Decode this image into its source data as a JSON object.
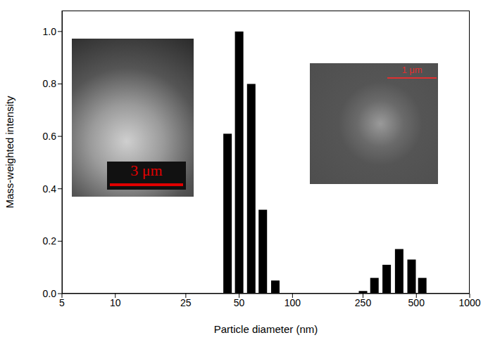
{
  "chart_data": {
    "type": "bar",
    "x": [
      43,
      50,
      58.5,
      68,
      80,
      250,
      290,
      340,
      400,
      470,
      540
    ],
    "values": [
      0.61,
      1.0,
      0.8,
      0.32,
      0.05,
      0.01,
      0.06,
      0.11,
      0.17,
      0.13,
      0.06
    ],
    "color": "#000000",
    "xlabel": "Particle diameter (nm)",
    "ylabel": "Mass-weighted intensity",
    "log": "x",
    "xlim": [
      5,
      1000
    ],
    "xticks": [
      5,
      10,
      25,
      50,
      100,
      250,
      500,
      1000
    ],
    "ylim": [
      0,
      1.08
    ],
    "yticks": [
      {
        "value": 0,
        "label": "0.0"
      },
      {
        "value": 0.2,
        "label": "0.2"
      },
      {
        "value": 0.4,
        "label": "0.4"
      },
      {
        "value": 0.6,
        "label": "0.6"
      },
      {
        "value": 0.8,
        "label": "0.8"
      },
      {
        "value": 1.0,
        "label": "1.0"
      }
    ],
    "grid": false,
    "annotations": [
      "3 μm",
      "1 μm"
    ]
  }
}
